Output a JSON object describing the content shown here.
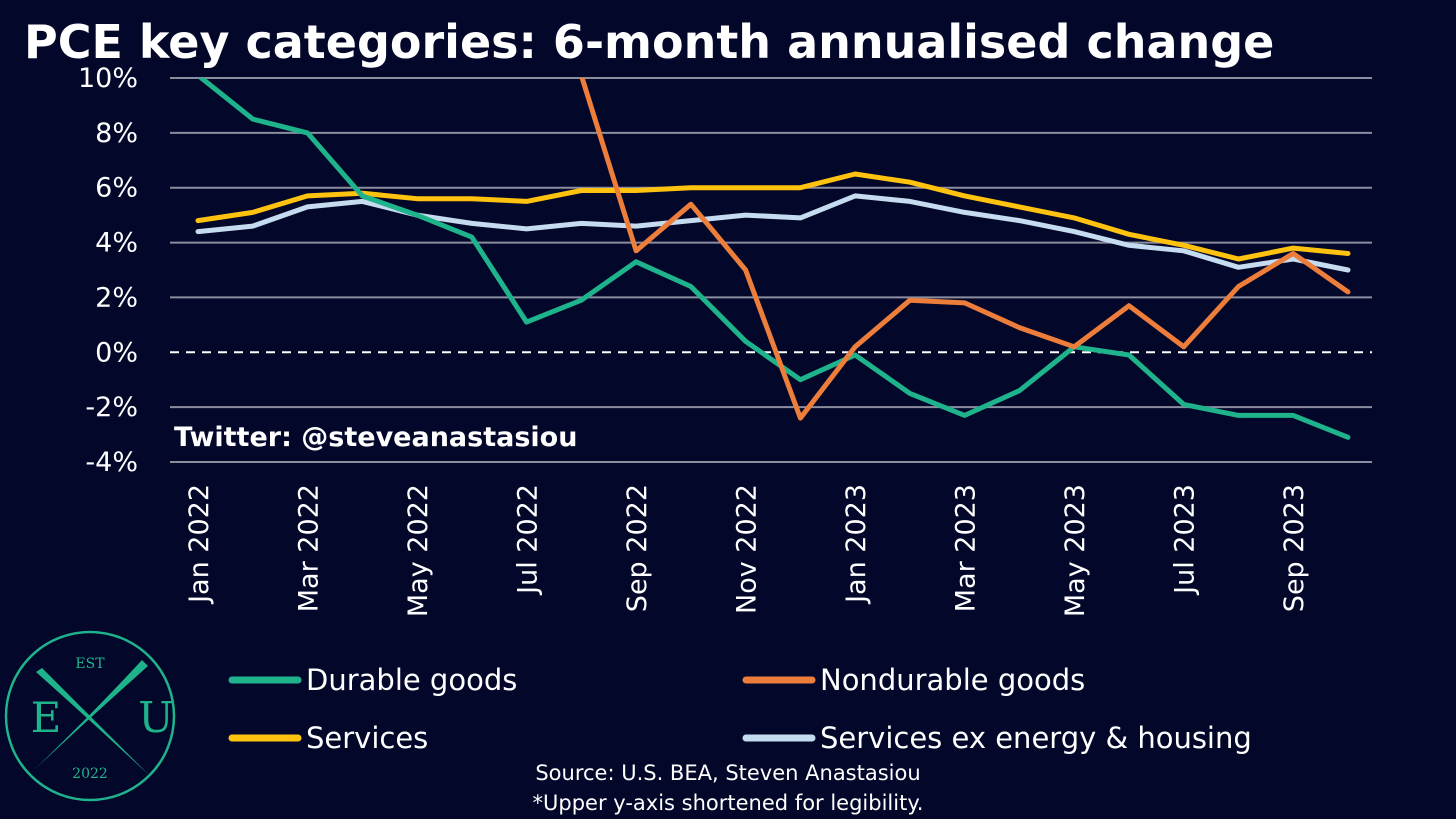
{
  "chart_data": {
    "type": "line",
    "title": "PCE key categories: 6-month annualised change",
    "x": [
      "Jan 2022",
      "Feb 2022",
      "Mar 2022",
      "Apr 2022",
      "May 2022",
      "Jun 2022",
      "Jul 2022",
      "Aug 2022",
      "Sep 2022",
      "Oct 2022",
      "Nov 2022",
      "Dec 2022",
      "Jan 2023",
      "Feb 2023",
      "Mar 2023",
      "Apr 2023",
      "May 2023",
      "Jun 2023",
      "Jul 2023",
      "Aug 2023",
      "Sep 2023",
      "Oct 2023"
    ],
    "xtick_labels": [
      "Jan 2022",
      "Mar 2022",
      "May 2022",
      "Jul 2022",
      "Sep 2022",
      "Nov 2022",
      "Jan 2023",
      "Mar 2023",
      "May 2023",
      "Jul 2023",
      "Sep 2023"
    ],
    "ylim": [
      -4,
      10
    ],
    "yticks": [
      10,
      8,
      6,
      4,
      2,
      0,
      -2,
      -4
    ],
    "ytick_labels": [
      "10%",
      "8%",
      "6%",
      "4%",
      "2%",
      "0%",
      "-2%",
      "-4%"
    ],
    "grid": true,
    "zero_line": "dashed",
    "legend_position": "bottom",
    "series": [
      {
        "name": "Durable goods",
        "color": "#1fb38c",
        "values": [
          10.1,
          8.5,
          8.0,
          5.7,
          5.0,
          4.2,
          1.1,
          1.9,
          3.3,
          2.4,
          0.4,
          -1.0,
          -0.1,
          -1.5,
          -2.3,
          -1.4,
          0.2,
          -0.1,
          -1.9,
          -2.3,
          -2.3,
          -3.1
        ]
      },
      {
        "name": "Nondurable goods",
        "color": "#ed7d3a",
        "values": [
          null,
          null,
          null,
          null,
          null,
          null,
          null,
          10.1,
          3.7,
          5.4,
          3.0,
          -2.4,
          0.2,
          1.9,
          1.8,
          0.9,
          0.2,
          1.7,
          0.2,
          2.4,
          3.6,
          2.2
        ]
      },
      {
        "name": "Services",
        "color": "#ffc20e",
        "values": [
          4.8,
          5.1,
          5.7,
          5.8,
          5.6,
          5.6,
          5.5,
          5.9,
          5.9,
          6.0,
          6.0,
          6.0,
          6.5,
          6.2,
          5.7,
          5.3,
          4.9,
          4.3,
          3.9,
          3.4,
          3.8,
          3.6
        ]
      },
      {
        "name": "Services ex energy & housing",
        "color": "#c5dbf0",
        "values": [
          4.4,
          4.6,
          5.3,
          5.5,
          5.0,
          4.7,
          4.5,
          4.7,
          4.6,
          4.8,
          5.0,
          4.9,
          5.7,
          5.5,
          5.1,
          4.8,
          4.4,
          3.9,
          3.7,
          3.1,
          3.4,
          3.0
        ]
      }
    ]
  },
  "annotations": {
    "twitter": "Twitter: @steveanastasiou",
    "source_line1": "Source: U.S. BEA, Steven Anastasiou",
    "source_line2": "*Upper y-axis shortened for legibility."
  },
  "logo": {
    "top_text": "EST",
    "left_letter": "E",
    "right_letter": "U",
    "bottom_text": "2022",
    "color": "#1fb38c"
  },
  "colors": {
    "background": "#03072a",
    "grid": "#8c8ea0",
    "text": "#ffffff"
  }
}
